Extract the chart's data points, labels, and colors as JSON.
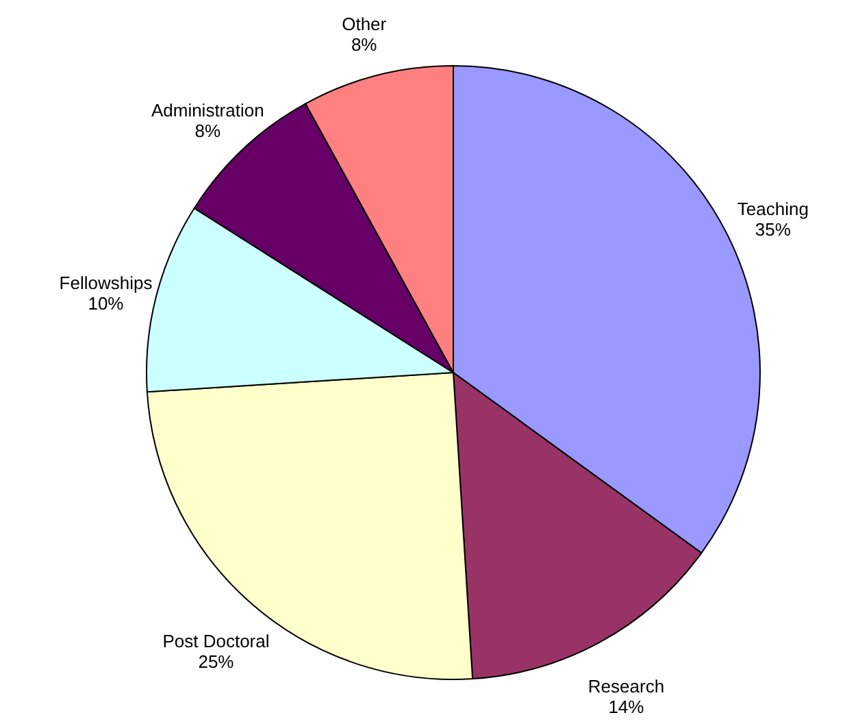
{
  "chart_data": {
    "type": "pie",
    "categories": [
      "Teaching",
      "Research",
      "Post Doctoral",
      "Fellowships",
      "Administration",
      "Other"
    ],
    "values": [
      35,
      14,
      25,
      10,
      8,
      8
    ],
    "value_labels": [
      "35%",
      "14%",
      "25%",
      "10%",
      "8%",
      "8%"
    ],
    "colors": [
      "#9999ff",
      "#993366",
      "#ffffcc",
      "#ccffff",
      "#660066",
      "#ff8080"
    ]
  }
}
